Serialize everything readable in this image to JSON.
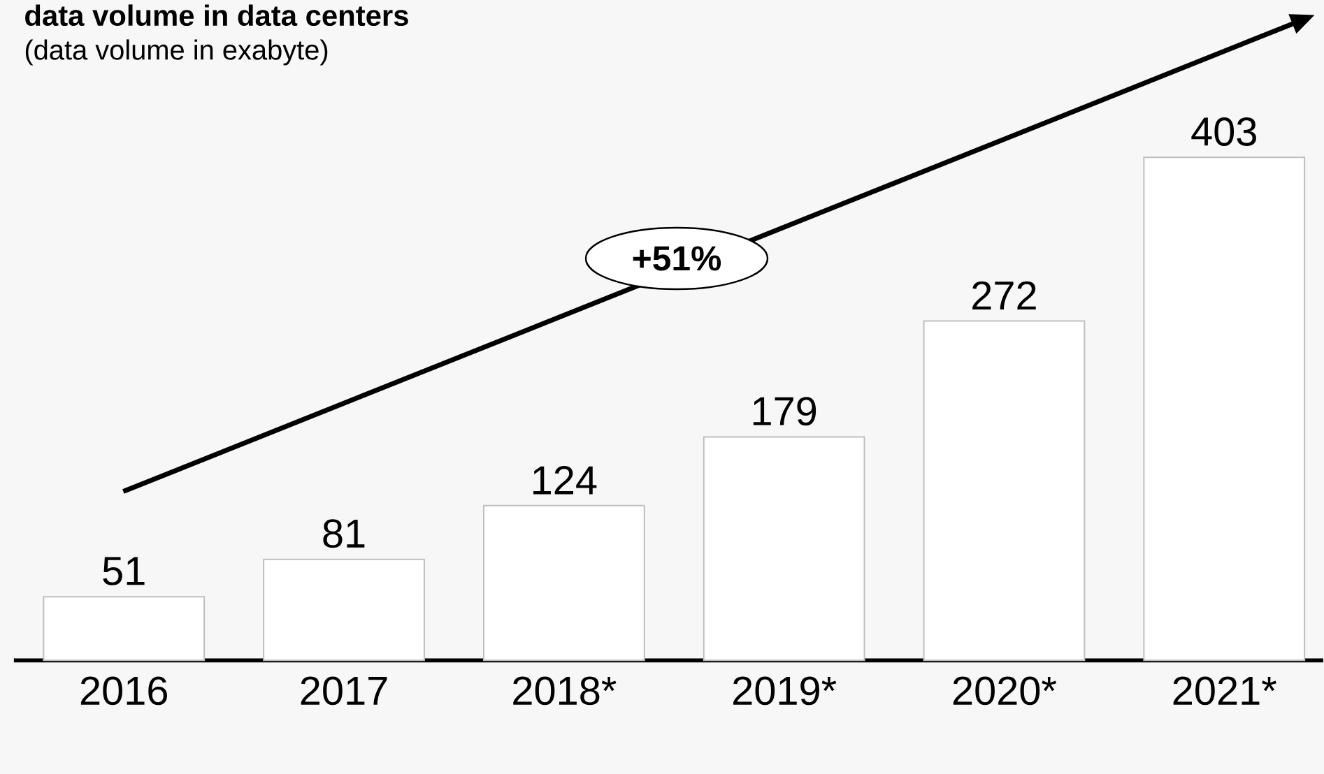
{
  "chart_data": {
    "type": "bar",
    "title": "data volume in data centers",
    "subtitle": "(data volume in exabyte)",
    "categories": [
      "2016",
      "2017",
      "2018*",
      "2019*",
      "2020*",
      "2021*"
    ],
    "values": [
      51,
      81,
      124,
      179,
      272,
      403
    ],
    "color": "#ffffff",
    "data_labels": true,
    "annotations": [
      "+51%"
    ]
  }
}
